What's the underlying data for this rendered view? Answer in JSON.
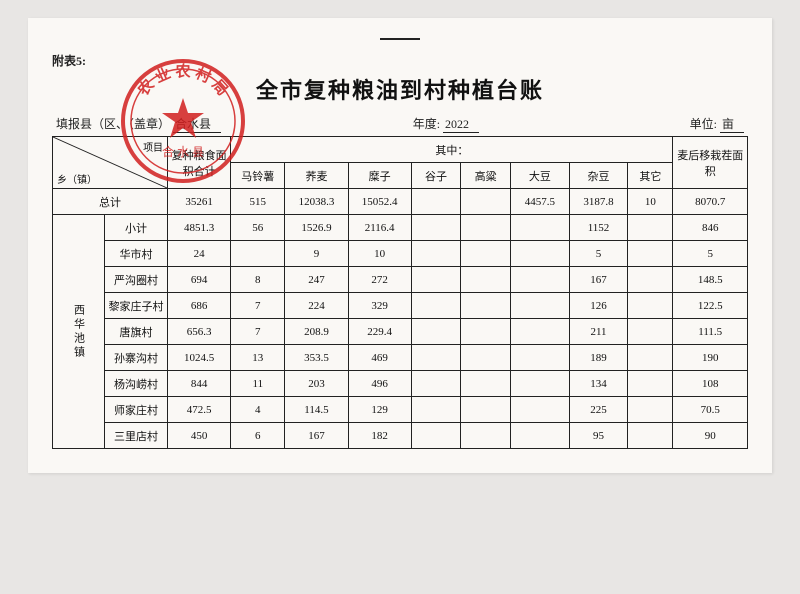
{
  "attach_label": "附表5:",
  "title": "全市复种粮油到村种植台账",
  "meta": {
    "county_label": "填报县（区、（盖章）",
    "county_value": "合水县",
    "year_label": "年度:",
    "year_value": "2022",
    "unit_label": "单位:",
    "unit_value": "亩"
  },
  "stamp": {
    "ring_text": "农 业 农 村 局",
    "side_text": "合 水 县",
    "color": "#d21f1f"
  },
  "headers": {
    "diag_top": "项目",
    "diag_bottom": "乡（镇）",
    "area_total": "复种粮食面积合计",
    "of_which": "其中：",
    "cols": [
      "马铃薯",
      "荞麦",
      "糜子",
      "谷子",
      "高粱",
      "大豆",
      "杂豆",
      "其它"
    ],
    "after_wheat": "麦后移栽茬面积"
  },
  "total_row_label": "总计",
  "total_row": [
    "35261",
    "515",
    "12038.3",
    "15052.4",
    "",
    "",
    "4457.5",
    "3187.8",
    "10",
    "8070.7"
  ],
  "group_label": "西华池镇",
  "rows": [
    {
      "name": "小计",
      "v": [
        "4851.3",
        "56",
        "1526.9",
        "2116.4",
        "",
        "",
        "",
        "1152",
        "",
        "846"
      ]
    },
    {
      "name": "华市村",
      "v": [
        "24",
        "",
        "9",
        "10",
        "",
        "",
        "",
        "5",
        "",
        "5"
      ]
    },
    {
      "name": "严沟圈村",
      "v": [
        "694",
        "8",
        "247",
        "272",
        "",
        "",
        "",
        "167",
        "",
        "148.5"
      ]
    },
    {
      "name": "黎家庄子村",
      "v": [
        "686",
        "7",
        "224",
        "329",
        "",
        "",
        "",
        "126",
        "",
        "122.5"
      ]
    },
    {
      "name": "唐旗村",
      "v": [
        "656.3",
        "7",
        "208.9",
        "229.4",
        "",
        "",
        "",
        "211",
        "",
        "111.5"
      ]
    },
    {
      "name": "孙寨沟村",
      "v": [
        "1024.5",
        "13",
        "353.5",
        "469",
        "",
        "",
        "",
        "189",
        "",
        "190"
      ]
    },
    {
      "name": "杨沟崂村",
      "v": [
        "844",
        "11",
        "203",
        "496",
        "",
        "",
        "",
        "134",
        "",
        "108"
      ]
    },
    {
      "name": "师家庄村",
      "v": [
        "472.5",
        "4",
        "114.5",
        "129",
        "",
        "",
        "",
        "225",
        "",
        "70.5"
      ]
    },
    {
      "name": "三里店村",
      "v": [
        "450",
        "6",
        "167",
        "182",
        "",
        "",
        "",
        "95",
        "",
        "90"
      ]
    }
  ],
  "colors": {
    "page_bg": "#faf8f5",
    "body_bg": "#e8e6e4",
    "line": "#222222",
    "stamp": "#d21f1f"
  }
}
